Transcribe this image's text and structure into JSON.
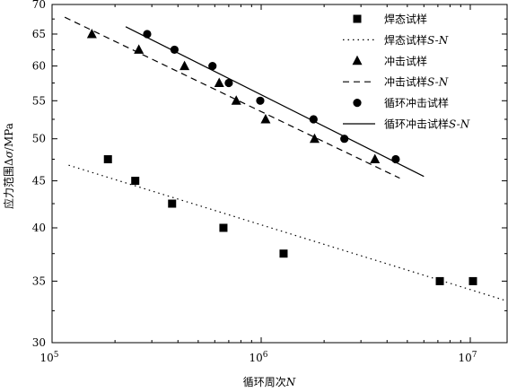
{
  "chart_data": {
    "type": "scatter",
    "xscale": "log",
    "yscale": "log",
    "xlim": [
      100000,
      15000000
    ],
    "ylim": [
      30,
      70
    ],
    "xlabel": {
      "prefix": "循环周次",
      "var": "N"
    },
    "ylabel": {
      "prefix": "应力范围",
      "delta": "Δ",
      "sigma": "σ",
      "unit": "/MPa"
    },
    "x_ticks": [
      {
        "value": 100000,
        "base": "10",
        "exp": "5"
      },
      {
        "value": 1000000,
        "base": "10",
        "exp": "6"
      },
      {
        "value": 10000000,
        "base": "10",
        "exp": "7"
      }
    ],
    "y_ticks": [
      {
        "value": 30,
        "label": "30"
      },
      {
        "value": 35,
        "label": "35"
      },
      {
        "value": 40,
        "label": "40"
      },
      {
        "value": 45,
        "label": "45"
      },
      {
        "value": 50,
        "label": "50"
      },
      {
        "value": 55,
        "label": "55"
      },
      {
        "value": 60,
        "label": "60"
      },
      {
        "value": 65,
        "label": "65"
      },
      {
        "value": 70,
        "label": "70"
      }
    ],
    "series": [
      {
        "name": "焊态试样",
        "kind": "points",
        "marker": "square",
        "points": [
          [
            185000,
            47.5
          ],
          [
            250000,
            45
          ],
          [
            375000,
            42.5
          ],
          [
            660000,
            40
          ],
          [
            1280000,
            37.5
          ],
          [
            7150000,
            35
          ],
          [
            10300000,
            35
          ]
        ]
      },
      {
        "name_prefix": "焊态试样",
        "name_suffix": "S-N",
        "kind": "fit",
        "dash": "1.5 4",
        "points": [
          [
            120000,
            46.8
          ],
          [
            15000000,
            33.3
          ]
        ]
      },
      {
        "name": "冲击试样",
        "kind": "points",
        "marker": "triangle",
        "points": [
          [
            155000,
            65
          ],
          [
            260000,
            62.5
          ],
          [
            430000,
            60
          ],
          [
            630000,
            57.5
          ],
          [
            760000,
            55
          ],
          [
            1050000,
            52.5
          ],
          [
            1800000,
            50
          ],
          [
            3500000,
            47.5
          ]
        ]
      },
      {
        "name_prefix": "冲击试样",
        "name_suffix": "S-N",
        "kind": "fit",
        "dash": "7 5",
        "points": [
          [
            115000,
            67.8
          ],
          [
            4600000,
            45.3
          ]
        ]
      },
      {
        "name": "循环冲击试样",
        "kind": "points",
        "marker": "circle",
        "points": [
          [
            285000,
            65
          ],
          [
            385000,
            62.5
          ],
          [
            585000,
            60
          ],
          [
            700000,
            57.5
          ],
          [
            990000,
            55
          ],
          [
            1780000,
            52.5
          ],
          [
            2500000,
            50
          ],
          [
            4400000,
            47.5
          ]
        ]
      },
      {
        "name_prefix": "循环冲击试样",
        "name_suffix": "S-N",
        "kind": "fit",
        "dash": "",
        "points": [
          [
            225000,
            66.2
          ],
          [
            6000000,
            45.5
          ]
        ]
      }
    ],
    "legend_position": "top-right",
    "grid": false
  }
}
